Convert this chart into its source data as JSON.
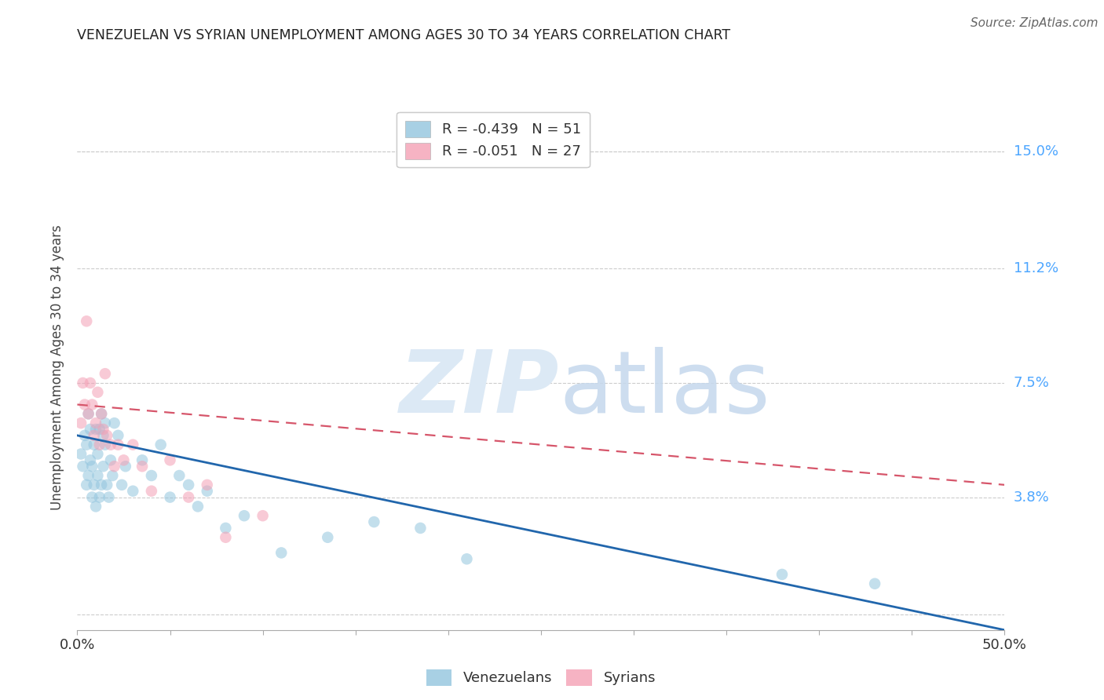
{
  "title": "VENEZUELAN VS SYRIAN UNEMPLOYMENT AMONG AGES 30 TO 34 YEARS CORRELATION CHART",
  "source": "Source: ZipAtlas.com",
  "ylabel": "Unemployment Among Ages 30 to 34 years",
  "xlim": [
    0.0,
    0.5
  ],
  "ylim": [
    -0.005,
    0.165
  ],
  "ytick_values": [
    0.0,
    0.038,
    0.075,
    0.112,
    0.15
  ],
  "xtick_values": [
    0.0,
    0.05,
    0.1,
    0.15,
    0.2,
    0.25,
    0.3,
    0.35,
    0.4,
    0.45,
    0.5
  ],
  "legend1_label_ven": "R = -0.439   N = 51",
  "legend1_label_syr": "R = -0.051   N = 27",
  "legend2_label_ven": "Venezuelans",
  "legend2_label_syr": "Syrians",
  "background_color": "#ffffff",
  "grid_color": "#cccccc",
  "scatter_alpha": 0.55,
  "scatter_size": 110,
  "venezuelan_color": "#92c5de",
  "syrian_color": "#f4a0b5",
  "trendline_ven_color": "#2166ac",
  "trendline_syr_color": "#d6556a",
  "ytick_color": "#4da6ff",
  "title_fontsize": 12.5,
  "source_fontsize": 11,
  "tick_fontsize": 13,
  "ylabel_fontsize": 12,
  "venezuelan_x": [
    0.002,
    0.003,
    0.004,
    0.005,
    0.005,
    0.006,
    0.006,
    0.007,
    0.007,
    0.008,
    0.008,
    0.009,
    0.009,
    0.01,
    0.01,
    0.011,
    0.011,
    0.012,
    0.012,
    0.013,
    0.013,
    0.014,
    0.014,
    0.015,
    0.015,
    0.016,
    0.017,
    0.018,
    0.019,
    0.02,
    0.022,
    0.024,
    0.026,
    0.03,
    0.035,
    0.04,
    0.045,
    0.05,
    0.055,
    0.06,
    0.065,
    0.07,
    0.08,
    0.09,
    0.11,
    0.135,
    0.16,
    0.185,
    0.21,
    0.38,
    0.43
  ],
  "venezuelan_y": [
    0.052,
    0.048,
    0.058,
    0.042,
    0.055,
    0.045,
    0.065,
    0.05,
    0.06,
    0.038,
    0.048,
    0.042,
    0.055,
    0.035,
    0.06,
    0.045,
    0.052,
    0.038,
    0.06,
    0.042,
    0.065,
    0.048,
    0.058,
    0.062,
    0.055,
    0.042,
    0.038,
    0.05,
    0.045,
    0.062,
    0.058,
    0.042,
    0.048,
    0.04,
    0.05,
    0.045,
    0.055,
    0.038,
    0.045,
    0.042,
    0.035,
    0.04,
    0.028,
    0.032,
    0.02,
    0.025,
    0.03,
    0.028,
    0.018,
    0.013,
    0.01
  ],
  "syrian_x": [
    0.002,
    0.003,
    0.004,
    0.005,
    0.006,
    0.007,
    0.008,
    0.009,
    0.01,
    0.011,
    0.012,
    0.013,
    0.014,
    0.015,
    0.016,
    0.018,
    0.02,
    0.022,
    0.025,
    0.03,
    0.035,
    0.04,
    0.05,
    0.06,
    0.07,
    0.08,
    0.1
  ],
  "syrian_y": [
    0.062,
    0.075,
    0.068,
    0.095,
    0.065,
    0.075,
    0.068,
    0.058,
    0.062,
    0.072,
    0.055,
    0.065,
    0.06,
    0.078,
    0.058,
    0.055,
    0.048,
    0.055,
    0.05,
    0.055,
    0.048,
    0.04,
    0.05,
    0.038,
    0.042,
    0.025,
    0.032
  ],
  "trendline_ven_start_y": 0.058,
  "trendline_ven_end_y": -0.005,
  "trendline_syr_start_y": 0.068,
  "trendline_syr_end_y": 0.042
}
